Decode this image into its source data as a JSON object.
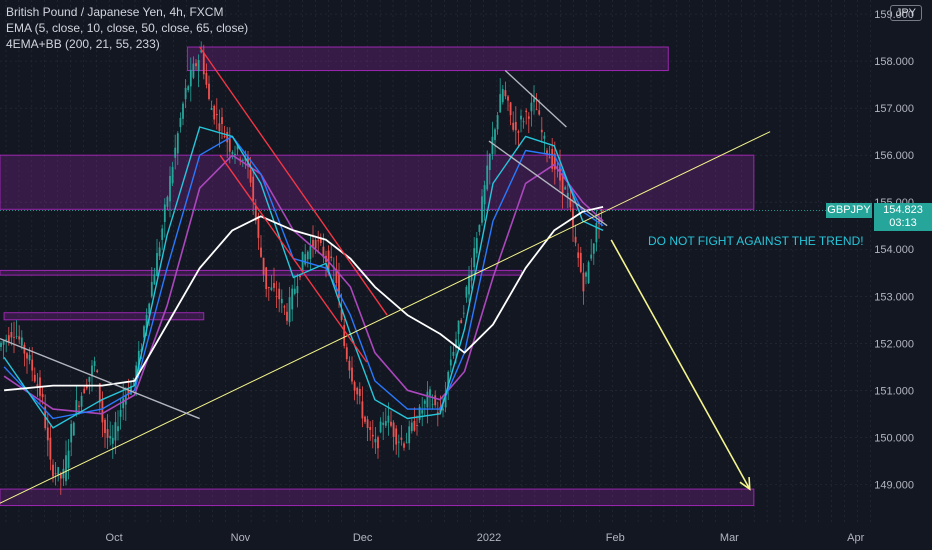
{
  "header": {
    "symbol_line": "British Pound / Japanese Yen, 4h, FXCM",
    "indicator_1": "EMA (5, close, 10, close, 50, close, 65, close)",
    "indicator_2": "4EMA+BB (200, 21, 55, 233)",
    "currency_badge": "JPY"
  },
  "price_tag": {
    "symbol": "GBPJPY",
    "price": "154.823",
    "countdown": "03:13"
  },
  "annotation": "DO NOT FIGHT AGAINST THE TREND!",
  "colors": {
    "background": "#131722",
    "grid": "#2a2e39",
    "zone": "#9c27b0",
    "uptrend_line": "#f5f58c",
    "channel_line": "#f23645",
    "gray_line": "#b2b5be",
    "candle_up": "#26a69a",
    "candle_down": "#ef5350",
    "ema_fast": "#26c6da",
    "ema_mid": "#2979ff",
    "ema_slow": "#ab47bc",
    "ema_200": "#ffffff",
    "tag": "#26a69a",
    "arrow": "#f5f58c",
    "axis_text": "#b2b5be"
  },
  "chart_data": {
    "type": "candlestick",
    "x_axis": {
      "ticks": [
        {
          "label": "Oct",
          "date": "2021-10-01"
        },
        {
          "label": "Nov",
          "date": "2021-11-01"
        },
        {
          "label": "Dec",
          "date": "2021-12-01"
        },
        {
          "label": "2022",
          "date": "2022-01-01"
        },
        {
          "label": "Feb",
          "date": "2022-02-01"
        },
        {
          "label": "Mar",
          "date": "2022-03-01"
        },
        {
          "label": "Apr",
          "date": "2022-04-01"
        }
      ],
      "range": [
        "2021-09-03",
        "2022-04-05"
      ]
    },
    "y_axis": {
      "ticks": [
        "149.000",
        "150.000",
        "151.000",
        "152.000",
        "153.000",
        "154.000",
        "155.000",
        "156.000",
        "157.000",
        "158.000",
        "159.000"
      ],
      "range": [
        148.2,
        159.3
      ],
      "position": "right",
      "grid": true
    },
    "last_price": 154.823,
    "price_path": [
      {
        "date": "2021-09-03",
        "price": 151.9
      },
      {
        "date": "2021-09-07",
        "price": 152.3
      },
      {
        "date": "2021-09-11",
        "price": 151.6
      },
      {
        "date": "2021-09-14",
        "price": 150.8
      },
      {
        "date": "2021-09-16",
        "price": 149.4
      },
      {
        "date": "2021-09-19",
        "price": 149.1
      },
      {
        "date": "2021-09-22",
        "price": 150.6
      },
      {
        "date": "2021-09-24",
        "price": 151.0
      },
      {
        "date": "2021-09-27",
        "price": 151.6
      },
      {
        "date": "2021-09-29",
        "price": 150.2
      },
      {
        "date": "2021-10-01",
        "price": 149.8
      },
      {
        "date": "2021-10-04",
        "price": 150.9
      },
      {
        "date": "2021-10-06",
        "price": 151.1
      },
      {
        "date": "2021-10-08",
        "price": 151.8
      },
      {
        "date": "2021-10-10",
        "price": 152.9
      },
      {
        "date": "2021-10-13",
        "price": 154.2
      },
      {
        "date": "2021-10-15",
        "price": 155.3
      },
      {
        "date": "2021-10-17",
        "price": 156.3
      },
      {
        "date": "2021-10-19",
        "price": 157.3
      },
      {
        "date": "2021-10-21",
        "price": 157.8
      },
      {
        "date": "2021-10-23",
        "price": 158.2
      },
      {
        "date": "2021-10-25",
        "price": 157.1
      },
      {
        "date": "2021-10-28",
        "price": 156.6
      },
      {
        "date": "2021-10-30",
        "price": 156.2
      },
      {
        "date": "2021-11-02",
        "price": 156.0
      },
      {
        "date": "2021-11-04",
        "price": 155.6
      },
      {
        "date": "2021-11-06",
        "price": 154.2
      },
      {
        "date": "2021-11-08",
        "price": 153.2
      },
      {
        "date": "2021-11-11",
        "price": 153.0
      },
      {
        "date": "2021-11-13",
        "price": 152.6
      },
      {
        "date": "2021-11-15",
        "price": 153.2
      },
      {
        "date": "2021-11-17",
        "price": 153.8
      },
      {
        "date": "2021-11-20",
        "price": 154.2
      },
      {
        "date": "2021-11-22",
        "price": 153.9
      },
      {
        "date": "2021-11-25",
        "price": 153.5
      },
      {
        "date": "2021-11-27",
        "price": 152.0
      },
      {
        "date": "2021-11-30",
        "price": 151.0
      },
      {
        "date": "2021-12-03",
        "price": 150.1
      },
      {
        "date": "2021-12-05",
        "price": 149.8
      },
      {
        "date": "2021-12-07",
        "price": 150.5
      },
      {
        "date": "2021-12-10",
        "price": 150.0
      },
      {
        "date": "2021-12-12",
        "price": 149.9
      },
      {
        "date": "2021-12-15",
        "price": 150.4
      },
      {
        "date": "2021-12-18",
        "price": 150.9
      },
      {
        "date": "2021-12-21",
        "price": 150.4
      },
      {
        "date": "2021-12-23",
        "price": 151.6
      },
      {
        "date": "2021-12-26",
        "price": 152.6
      },
      {
        "date": "2021-12-29",
        "price": 154.0
      },
      {
        "date": "2022-01-01",
        "price": 155.5
      },
      {
        "date": "2022-01-03",
        "price": 156.6
      },
      {
        "date": "2022-01-05",
        "price": 157.4
      },
      {
        "date": "2022-01-08",
        "price": 156.5
      },
      {
        "date": "2022-01-10",
        "price": 156.8
      },
      {
        "date": "2022-01-13",
        "price": 157.1
      },
      {
        "date": "2022-01-15",
        "price": 156.3
      },
      {
        "date": "2022-01-18",
        "price": 155.7
      },
      {
        "date": "2022-01-21",
        "price": 155.1
      },
      {
        "date": "2022-01-23",
        "price": 154.0
      },
      {
        "date": "2022-01-25",
        "price": 153.2
      },
      {
        "date": "2022-01-27",
        "price": 154.1
      },
      {
        "date": "2022-01-29",
        "price": 154.8
      }
    ],
    "ema_200": [
      {
        "date": "2021-09-04",
        "price": 151.0
      },
      {
        "date": "2021-09-16",
        "price": 151.1
      },
      {
        "date": "2021-09-28",
        "price": 151.1
      },
      {
        "date": "2021-10-06",
        "price": 151.2
      },
      {
        "date": "2021-10-14",
        "price": 152.4
      },
      {
        "date": "2021-10-22",
        "price": 153.6
      },
      {
        "date": "2021-10-30",
        "price": 154.4
      },
      {
        "date": "2021-11-06",
        "price": 154.7
      },
      {
        "date": "2021-11-14",
        "price": 154.4
      },
      {
        "date": "2021-11-22",
        "price": 154.2
      },
      {
        "date": "2021-11-28",
        "price": 153.8
      },
      {
        "date": "2021-12-04",
        "price": 153.2
      },
      {
        "date": "2021-12-12",
        "price": 152.6
      },
      {
        "date": "2021-12-20",
        "price": 152.2
      },
      {
        "date": "2021-12-26",
        "price": 151.8
      },
      {
        "date": "2022-01-02",
        "price": 152.4
      },
      {
        "date": "2022-01-10",
        "price": 153.6
      },
      {
        "date": "2022-01-17",
        "price": 154.4
      },
      {
        "date": "2022-01-24",
        "price": 154.8
      },
      {
        "date": "2022-01-29",
        "price": 154.9
      }
    ],
    "ema_fast": [
      {
        "date": "2021-09-04",
        "price": 151.7
      },
      {
        "date": "2021-09-16",
        "price": 150.2
      },
      {
        "date": "2021-09-28",
        "price": 150.8
      },
      {
        "date": "2021-10-06",
        "price": 151.1
      },
      {
        "date": "2021-10-14",
        "price": 154.3
      },
      {
        "date": "2021-10-22",
        "price": 156.6
      },
      {
        "date": "2021-10-30",
        "price": 156.4
      },
      {
        "date": "2021-11-06",
        "price": 155.4
      },
      {
        "date": "2021-11-14",
        "price": 153.4
      },
      {
        "date": "2021-11-22",
        "price": 153.7
      },
      {
        "date": "2021-11-28",
        "price": 152.2
      },
      {
        "date": "2021-12-04",
        "price": 150.8
      },
      {
        "date": "2021-12-12",
        "price": 150.4
      },
      {
        "date": "2021-12-20",
        "price": 150.5
      },
      {
        "date": "2021-12-26",
        "price": 152.3
      },
      {
        "date": "2022-01-02",
        "price": 155.4
      },
      {
        "date": "2022-01-10",
        "price": 156.4
      },
      {
        "date": "2022-01-17",
        "price": 156.2
      },
      {
        "date": "2022-01-24",
        "price": 154.6
      },
      {
        "date": "2022-01-29",
        "price": 154.4
      }
    ],
    "ema_mid": [
      {
        "date": "2021-09-04",
        "price": 151.5
      },
      {
        "date": "2021-09-16",
        "price": 150.4
      },
      {
        "date": "2021-09-28",
        "price": 150.6
      },
      {
        "date": "2021-10-06",
        "price": 151.0
      },
      {
        "date": "2021-10-14",
        "price": 153.6
      },
      {
        "date": "2021-10-22",
        "price": 156.0
      },
      {
        "date": "2021-10-30",
        "price": 156.4
      },
      {
        "date": "2021-11-06",
        "price": 155.6
      },
      {
        "date": "2021-11-14",
        "price": 153.8
      },
      {
        "date": "2021-11-22",
        "price": 153.6
      },
      {
        "date": "2021-11-28",
        "price": 152.6
      },
      {
        "date": "2021-12-04",
        "price": 151.2
      },
      {
        "date": "2021-12-12",
        "price": 150.6
      },
      {
        "date": "2021-12-20",
        "price": 150.6
      },
      {
        "date": "2021-12-26",
        "price": 151.8
      },
      {
        "date": "2022-01-02",
        "price": 154.6
      },
      {
        "date": "2022-01-10",
        "price": 156.1
      },
      {
        "date": "2022-01-17",
        "price": 156.0
      },
      {
        "date": "2022-01-24",
        "price": 154.8
      },
      {
        "date": "2022-01-29",
        "price": 154.5
      }
    ],
    "ema_slow": [
      {
        "date": "2021-09-04",
        "price": 151.3
      },
      {
        "date": "2021-09-16",
        "price": 150.6
      },
      {
        "date": "2021-09-28",
        "price": 150.5
      },
      {
        "date": "2021-10-06",
        "price": 150.9
      },
      {
        "date": "2021-10-14",
        "price": 152.8
      },
      {
        "date": "2021-10-22",
        "price": 155.3
      },
      {
        "date": "2021-10-30",
        "price": 156.0
      },
      {
        "date": "2021-11-06",
        "price": 155.6
      },
      {
        "date": "2021-11-14",
        "price": 154.4
      },
      {
        "date": "2021-11-22",
        "price": 153.8
      },
      {
        "date": "2021-11-28",
        "price": 153.2
      },
      {
        "date": "2021-12-04",
        "price": 151.8
      },
      {
        "date": "2021-12-12",
        "price": 151.0
      },
      {
        "date": "2021-12-20",
        "price": 150.8
      },
      {
        "date": "2021-12-26",
        "price": 151.4
      },
      {
        "date": "2022-01-02",
        "price": 153.4
      },
      {
        "date": "2022-01-10",
        "price": 155.4
      },
      {
        "date": "2022-01-17",
        "price": 155.8
      },
      {
        "date": "2022-01-24",
        "price": 155.0
      },
      {
        "date": "2022-01-29",
        "price": 154.6
      }
    ],
    "zones": [
      {
        "name": "zone-158",
        "from": "2021-10-19",
        "to": "2022-02-14",
        "low": 157.8,
        "high": 158.3
      },
      {
        "name": "zone-155-156",
        "from": "2021-09-03",
        "to": "2022-03-07",
        "low": 154.85,
        "high": 156.0
      },
      {
        "name": "zone-154",
        "from": "2021-09-03",
        "to": "2022-01-09",
        "low": 153.45,
        "high": 153.55
      },
      {
        "name": "zone-152",
        "from": "2021-09-04",
        "to": "2021-10-23",
        "low": 152.5,
        "high": 152.65
      },
      {
        "name": "zone-149",
        "from": "2021-09-03",
        "to": "2022-03-07",
        "low": 148.55,
        "high": 148.9
      }
    ],
    "trendlines": [
      {
        "name": "uptrend-line",
        "kind": "uptrend",
        "from": {
          "date": "2021-09-03",
          "price": 148.6
        },
        "to": {
          "date": "2022-03-11",
          "price": 156.5
        }
      },
      {
        "name": "channel-upper",
        "kind": "channel",
        "from": {
          "date": "2021-10-22",
          "price": 158.3
        },
        "to": {
          "date": "2021-12-07",
          "price": 152.6
        }
      },
      {
        "name": "channel-lower",
        "kind": "channel",
        "from": {
          "date": "2021-10-27",
          "price": 156.0
        },
        "to": {
          "date": "2021-12-02",
          "price": 151.6
        }
      },
      {
        "name": "gray-line-sep",
        "kind": "gray",
        "from": {
          "date": "2021-09-03",
          "price": 152.1
        },
        "to": {
          "date": "2021-10-22",
          "price": 150.4
        }
      },
      {
        "name": "gray-line-jan-top",
        "kind": "gray",
        "from": {
          "date": "2022-01-05",
          "price": 157.8
        },
        "to": {
          "date": "2022-01-20",
          "price": 156.6
        }
      },
      {
        "name": "gray-line-jan-mid",
        "kind": "gray",
        "from": {
          "date": "2022-01-01",
          "price": 156.3
        },
        "to": {
          "date": "2022-01-30",
          "price": 154.5
        }
      }
    ],
    "projection_arrow": {
      "from": {
        "date": "2022-01-31",
        "price": 154.2
      },
      "to": {
        "date": "2022-03-06",
        "price": 148.9
      }
    }
  }
}
